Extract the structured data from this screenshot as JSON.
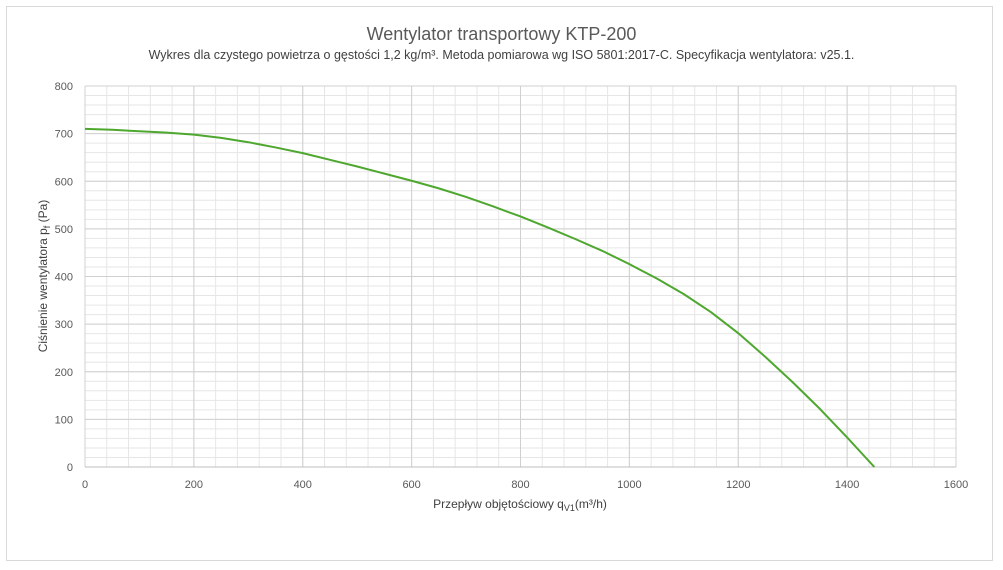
{
  "chart_data": {
    "type": "line",
    "title": "Wentylator transportowy KTP-200",
    "subtitle": "Wykres dla czystego powietrza o gęstości 1,2 kg/m³. Metoda pomiarowa wg ISO 5801:2017-C. Specyfikacja wentylatora: v25.1.",
    "xlabel_main": "Przepływ objętościowy q",
    "xlabel_sub": "V1",
    "xlabel_unit": "(m³/h)",
    "ylabel_main": "Ciśnienie wentylatora p",
    "ylabel_sub": "f",
    "ylabel_unit": " (Pa)",
    "xlim": [
      0,
      1600
    ],
    "ylim": [
      0,
      800
    ],
    "x_ticks": [
      0,
      200,
      400,
      600,
      800,
      1000,
      1200,
      1400,
      1600
    ],
    "y_ticks": [
      0,
      100,
      200,
      300,
      400,
      500,
      600,
      700,
      800
    ],
    "grid": true,
    "legend": "none",
    "series": [
      {
        "color": "#4ea72e",
        "x": [
          0,
          50,
          100,
          150,
          200,
          250,
          300,
          350,
          400,
          450,
          500,
          550,
          600,
          650,
          700,
          750,
          800,
          850,
          900,
          950,
          1000,
          1050,
          1100,
          1150,
          1200,
          1250,
          1300,
          1350,
          1400,
          1450
        ],
        "y": [
          710,
          708,
          705,
          702,
          698,
          691,
          682,
          671,
          659,
          645,
          631,
          616,
          601,
          585,
          567,
          547,
          526,
          503,
          479,
          454,
          426,
          396,
          363,
          325,
          281,
          231,
          178,
          122,
          62,
          0
        ]
      }
    ]
  }
}
